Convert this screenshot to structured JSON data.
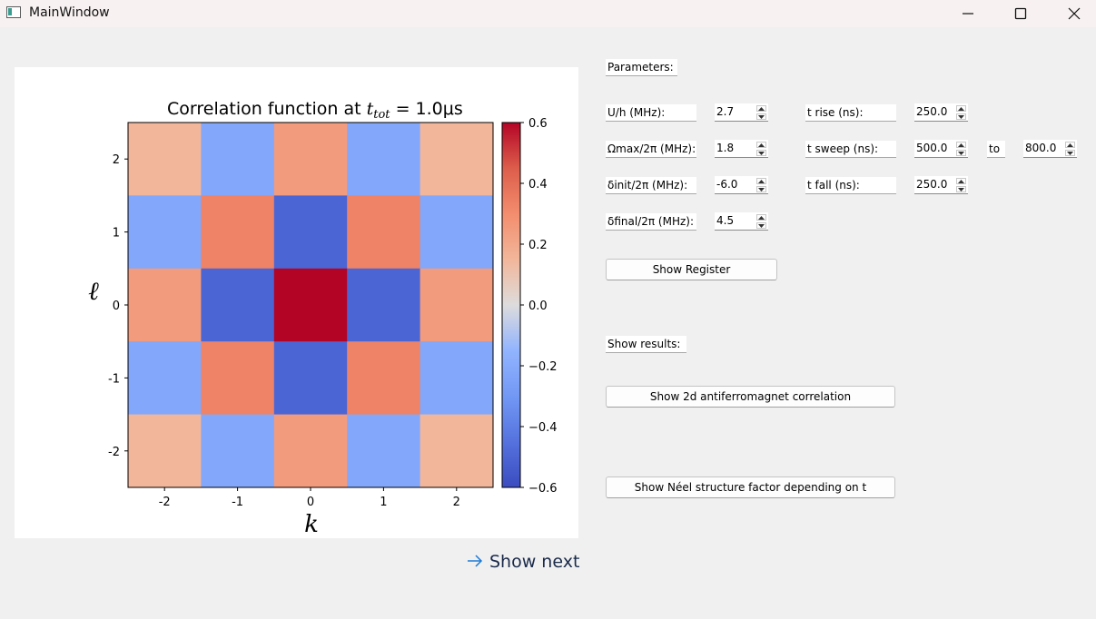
{
  "window": {
    "title": "MainWindow",
    "colors": {
      "titlebar": "#f7f1f1",
      "body": "#f0f0f0"
    }
  },
  "plot": {
    "title_prefix": "Correlation function at ",
    "title_math": "t",
    "title_sub": "tot",
    "title_suffix": " = 1.0μs",
    "show_next_label": "Show next"
  },
  "chart_data": {
    "type": "heatmap",
    "title": "Correlation function at t_tot = 1.0μs",
    "xlabel": "k",
    "ylabel": "ℓ",
    "x": [
      -2,
      -1,
      0,
      1,
      2
    ],
    "y": [
      2,
      1,
      0,
      -1,
      -2
    ],
    "x_tick_labels": [
      "-2",
      "-1",
      "0",
      "1",
      "2"
    ],
    "y_tick_labels": [
      "2",
      "1",
      "0",
      "-1",
      "-2"
    ],
    "values": [
      [
        0.15,
        -0.22,
        0.25,
        -0.22,
        0.15
      ],
      [
        -0.22,
        0.33,
        -0.5,
        0.33,
        -0.22
      ],
      [
        0.25,
        -0.5,
        0.6,
        -0.5,
        0.25
      ],
      [
        -0.22,
        0.33,
        -0.5,
        0.33,
        -0.22
      ],
      [
        0.15,
        -0.22,
        0.25,
        -0.22,
        0.15
      ]
    ],
    "colorbar": {
      "min": -0.6,
      "max": 0.6,
      "ticks": [
        0.6,
        0.4,
        0.2,
        0.0,
        -0.2,
        -0.4,
        -0.6
      ],
      "tick_labels": [
        "0.6",
        "0.4",
        "0.2",
        "0.0",
        "−0.2",
        "−0.4",
        "−0.6"
      ],
      "colormap": "coolwarm"
    }
  },
  "params": {
    "header": "Parameters:",
    "rows": [
      {
        "label": "U/h (MHz):",
        "value": "2.7"
      },
      {
        "label": "Ωmax/2π (MHz):",
        "value": "1.8"
      },
      {
        "label": "δinit/2π (MHz):",
        "value": "-6.0"
      },
      {
        "label": "δfinal/2π (MHz):",
        "value": "4.5"
      }
    ],
    "t_rise": {
      "label": "t rise (ns):",
      "value": "250.0"
    },
    "t_sweep": {
      "label": "t sweep (ns):",
      "value": "500.0",
      "to_label": "to",
      "to_value": "800.0"
    },
    "t_fall": {
      "label": "t fall (ns):",
      "value": "250.0"
    },
    "show_register": "Show Register"
  },
  "results": {
    "header": "Show results:",
    "btn_correlation": "Show 2d antiferromagnet correlation",
    "btn_neel": "Show Néel structure factor depending on t"
  }
}
